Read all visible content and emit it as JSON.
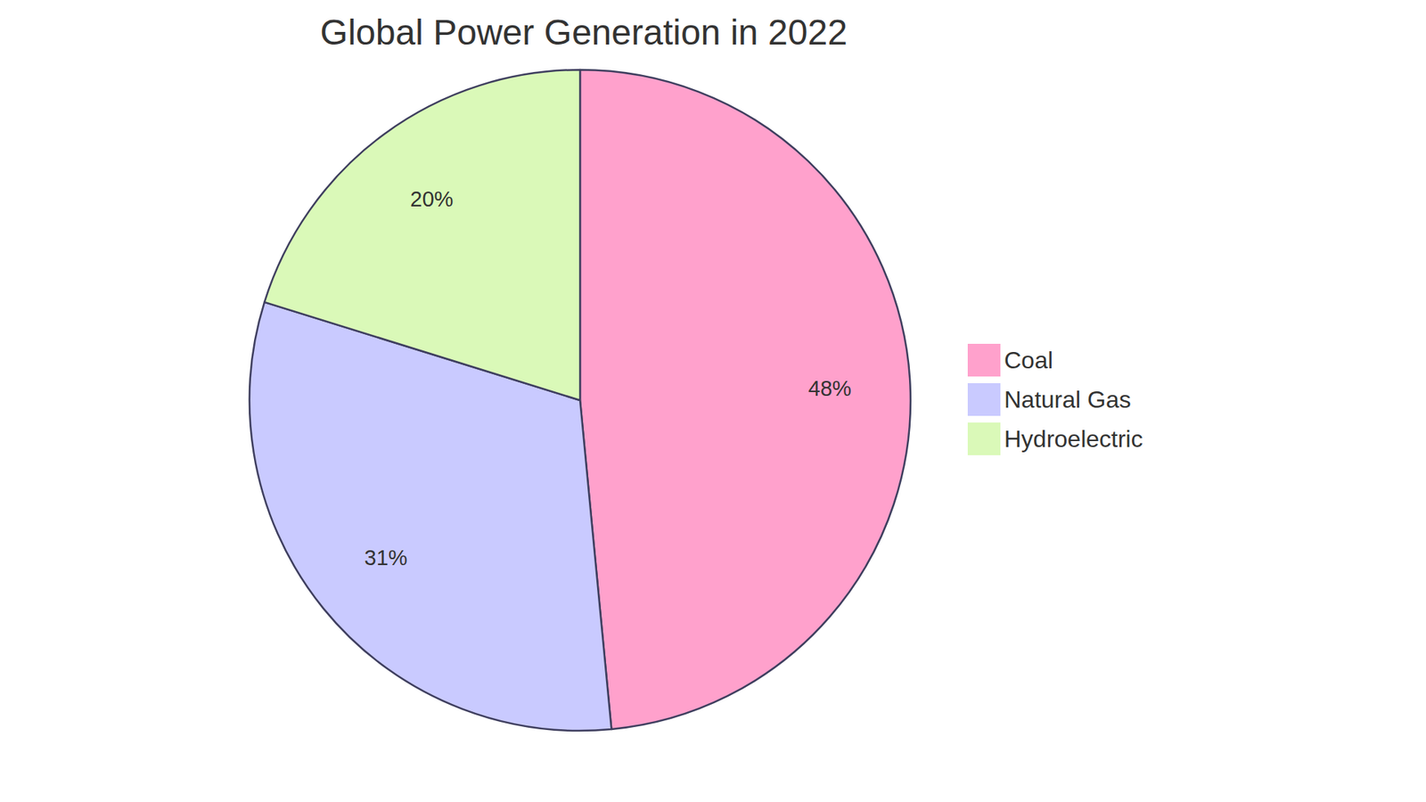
{
  "chart_data": {
    "type": "pie",
    "title": "Global Power Generation in 2022",
    "categories": [
      "Coal",
      "Natural Gas",
      "Hydroelectric"
    ],
    "values": [
      48,
      31,
      20
    ],
    "value_labels": [
      "48%",
      "31%",
      "20%"
    ],
    "colors": [
      "#ffa1cc",
      "#c9caff",
      "#daf9b8"
    ],
    "data_labels": true,
    "legend": "right"
  }
}
